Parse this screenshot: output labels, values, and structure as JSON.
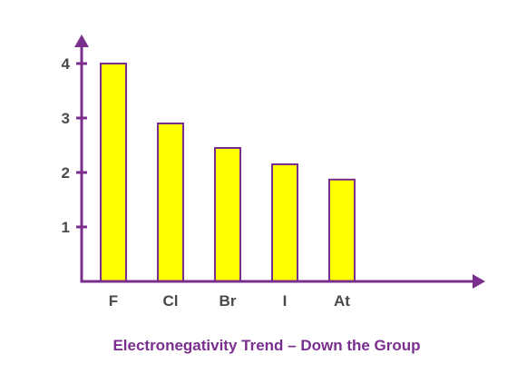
{
  "chart_data": {
    "type": "bar",
    "title": "Electronegativity Trend – Down the Group",
    "xlabel": "",
    "ylabel": "",
    "categories": [
      "F",
      "Cl",
      "Br",
      "I",
      "At"
    ],
    "values": [
      4.0,
      2.9,
      2.45,
      2.15,
      1.87
    ],
    "ylim": [
      0,
      4.5
    ],
    "yticks": [
      1,
      2,
      3,
      4
    ],
    "grid": false,
    "legend": "none",
    "colors": {
      "bar_fill": "#ffff00",
      "bar_stroke": "#7a2f8f",
      "axis": "#7a2f8f",
      "title": "#7a2f8f",
      "labels": "#4a4a4a"
    }
  }
}
